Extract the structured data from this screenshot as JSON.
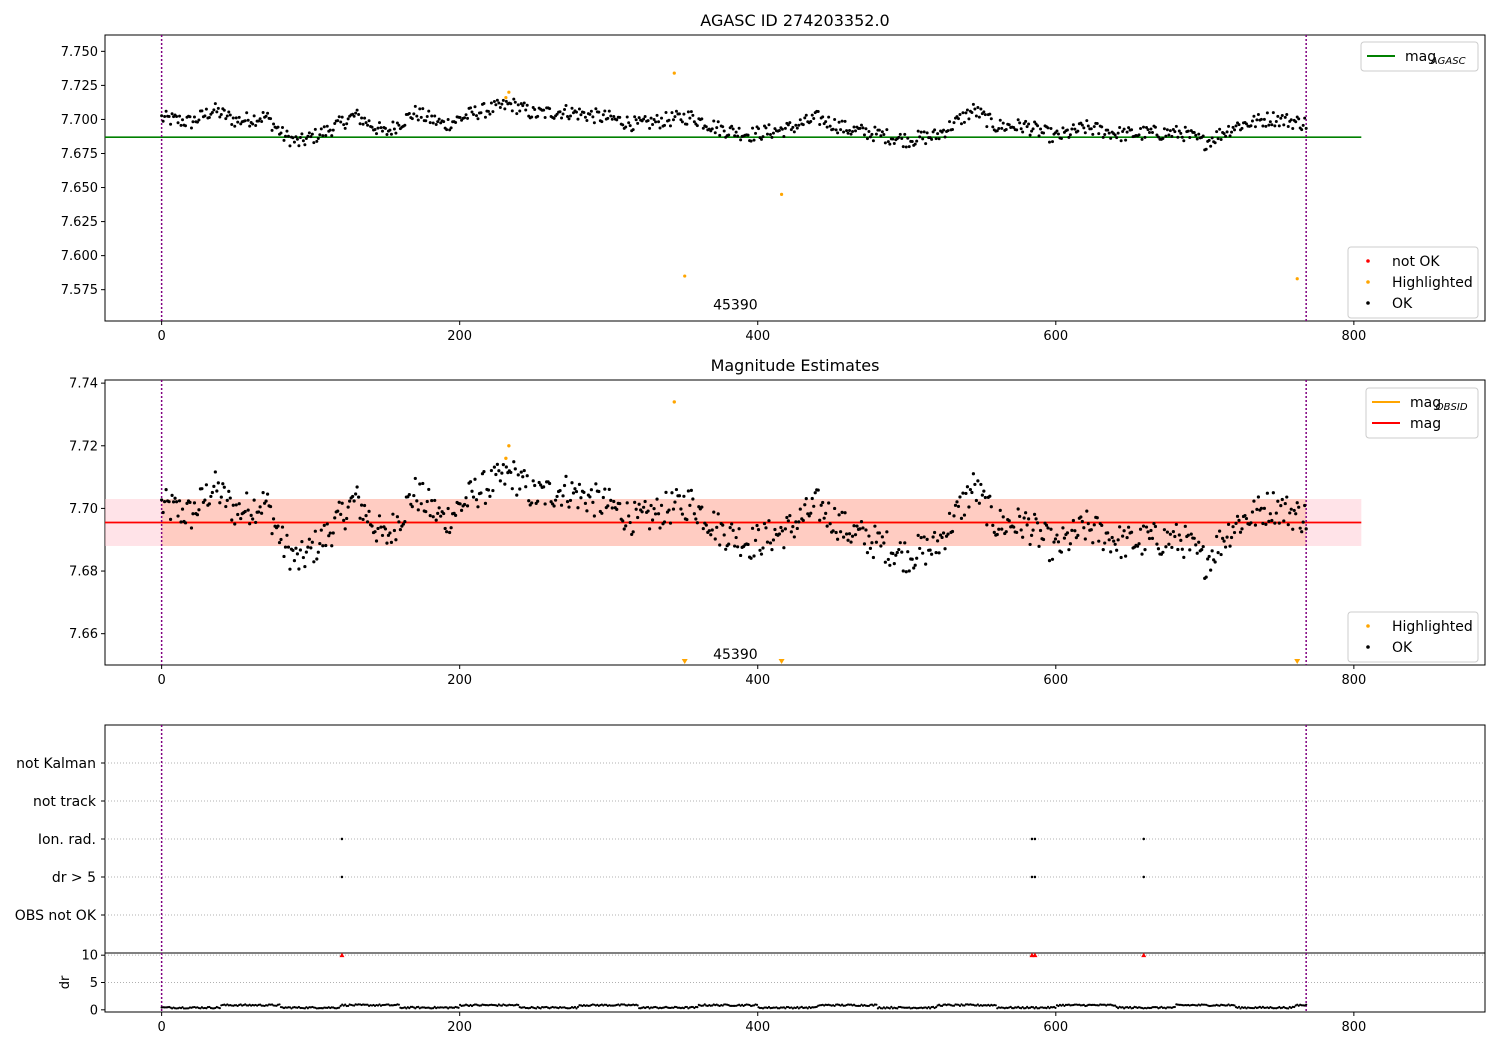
{
  "chart_data": [
    {
      "type": "scatter",
      "title": "AGASC ID 274203352.0",
      "xlim": [
        -38,
        888
      ],
      "ylim": [
        7.552,
        7.762
      ],
      "xticks": [
        0,
        200,
        400,
        600,
        800
      ],
      "yticks": [
        7.575,
        7.6,
        7.625,
        7.65,
        7.675,
        7.7,
        7.725,
        7.75
      ],
      "ytick_labels": [
        "7.575",
        "7.600",
        "7.625",
        "7.650",
        "7.675",
        "7.700",
        "7.725",
        "7.750"
      ],
      "vlines": [
        0,
        768
      ],
      "annotation": {
        "x": 385,
        "y": 7.564,
        "text": "45390"
      },
      "lines": [
        {
          "name": "mag_AGASC",
          "label_main": "mag",
          "label_sub": "AGASC",
          "y": 7.687,
          "x": [
            -38,
            805
          ],
          "color": "#008000"
        }
      ],
      "ok_series": {
        "n": 768,
        "baseline": 7.6955,
        "x0": 0,
        "x1": 768
      },
      "highlighted": [
        {
          "x": 344,
          "y": 7.734
        },
        {
          "x": 231,
          "y": 7.716
        },
        {
          "x": 233,
          "y": 7.72
        },
        {
          "x": 416,
          "y": 7.645
        },
        {
          "x": 351,
          "y": 7.585
        },
        {
          "x": 762,
          "y": 7.583
        }
      ],
      "not_ok": [],
      "legends": [
        {
          "position": "top-right",
          "entries": [
            {
              "kind": "line",
              "color": "#008000",
              "label_main": "mag",
              "label_sub": "AGASC"
            }
          ]
        },
        {
          "position": "lower-right",
          "entries": [
            {
              "kind": "dot",
              "color": "#ff0000",
              "label_main": "not OK"
            },
            {
              "kind": "dot",
              "color": "#ffa500",
              "label_main": "Highlighted"
            },
            {
              "kind": "dot",
              "color": "#000000",
              "label_main": "OK"
            }
          ]
        }
      ]
    },
    {
      "type": "scatter",
      "title": "Magnitude Estimates",
      "xlim": [
        -38,
        888
      ],
      "ylim": [
        7.65,
        7.741
      ],
      "xticks": [
        0,
        200,
        400,
        600,
        800
      ],
      "yticks": [
        7.66,
        7.68,
        7.7,
        7.72,
        7.74
      ],
      "ytick_labels": [
        "7.66",
        "7.68",
        "7.70",
        "7.72",
        "7.74"
      ],
      "vlines": [
        0,
        768
      ],
      "annotation": {
        "x": 385,
        "y": 7.6535,
        "text": "45390"
      },
      "bands": [
        {
          "y0": 7.688,
          "y1": 7.703,
          "x": [
            -38,
            805
          ],
          "color": "#ffc0cb",
          "opacity": 0.45
        },
        {
          "y0": 7.688,
          "y1": 7.703,
          "x": [
            0,
            768
          ],
          "color": "#ffa07a",
          "opacity": 0.35
        }
      ],
      "lines": [
        {
          "name": "mag_OBSID",
          "label_main": "mag",
          "label_sub": "OBSID",
          "y": 7.6955,
          "x": [
            0,
            768
          ],
          "color": "#ffa500"
        },
        {
          "name": "mag",
          "label_main": "mag",
          "y": 7.6955,
          "x": [
            -38,
            805
          ],
          "color": "#ff0000"
        }
      ],
      "ok_series": {
        "n": 768,
        "baseline": 7.6955,
        "x0": 0,
        "x1": 768
      },
      "highlighted": [
        {
          "x": 344,
          "y": 7.734
        },
        {
          "x": 231,
          "y": 7.716
        },
        {
          "x": 233,
          "y": 7.72
        }
      ],
      "off_axis_markers": [
        {
          "x": 351,
          "y": 7.65
        },
        {
          "x": 416,
          "y": 7.65
        },
        {
          "x": 762,
          "y": 7.65
        }
      ],
      "legends": [
        {
          "position": "top-right",
          "entries": [
            {
              "kind": "line",
              "color": "#ffa500",
              "label_main": "mag",
              "label_sub": "OBSID"
            },
            {
              "kind": "line",
              "color": "#ff0000",
              "label_main": "mag"
            }
          ]
        },
        {
          "position": "lower-right",
          "entries": [
            {
              "kind": "dot",
              "color": "#ffa500",
              "label_main": "Highlighted"
            },
            {
              "kind": "dot",
              "color": "#000000",
              "label_main": "OK"
            }
          ]
        }
      ]
    },
    {
      "type": "scatter",
      "title": "",
      "xlim": [
        -38,
        888
      ],
      "categories": [
        "not Kalman",
        "not track",
        "Ion. rad.",
        "dr > 5",
        "OBS not OK"
      ],
      "vlines": [
        0,
        768
      ],
      "flags": [
        {
          "category": "Ion. rad.",
          "x": [
            121,
            584,
            586,
            659
          ]
        },
        {
          "category": "dr > 5",
          "x": [
            121,
            584,
            586,
            659
          ]
        }
      ]
    },
    {
      "type": "scatter",
      "title": "",
      "ylabel": "dr",
      "xlim": [
        -38,
        888
      ],
      "ylim": [
        -0.4,
        10.4
      ],
      "xticks": [
        0,
        200,
        400,
        600,
        800
      ],
      "yticks": [
        0,
        5,
        10
      ],
      "ytick_labels": [
        "0",
        "5",
        "10"
      ],
      "vlines": [
        0,
        768
      ],
      "dr_series": {
        "n": 768,
        "x0": 0,
        "x1": 768,
        "typical": 0.5
      },
      "dr_clipped": [
        {
          "x": 121,
          "y": 10
        },
        {
          "x": 584,
          "y": 10
        },
        {
          "x": 586,
          "y": 10
        },
        {
          "x": 659,
          "y": 10
        }
      ]
    }
  ]
}
